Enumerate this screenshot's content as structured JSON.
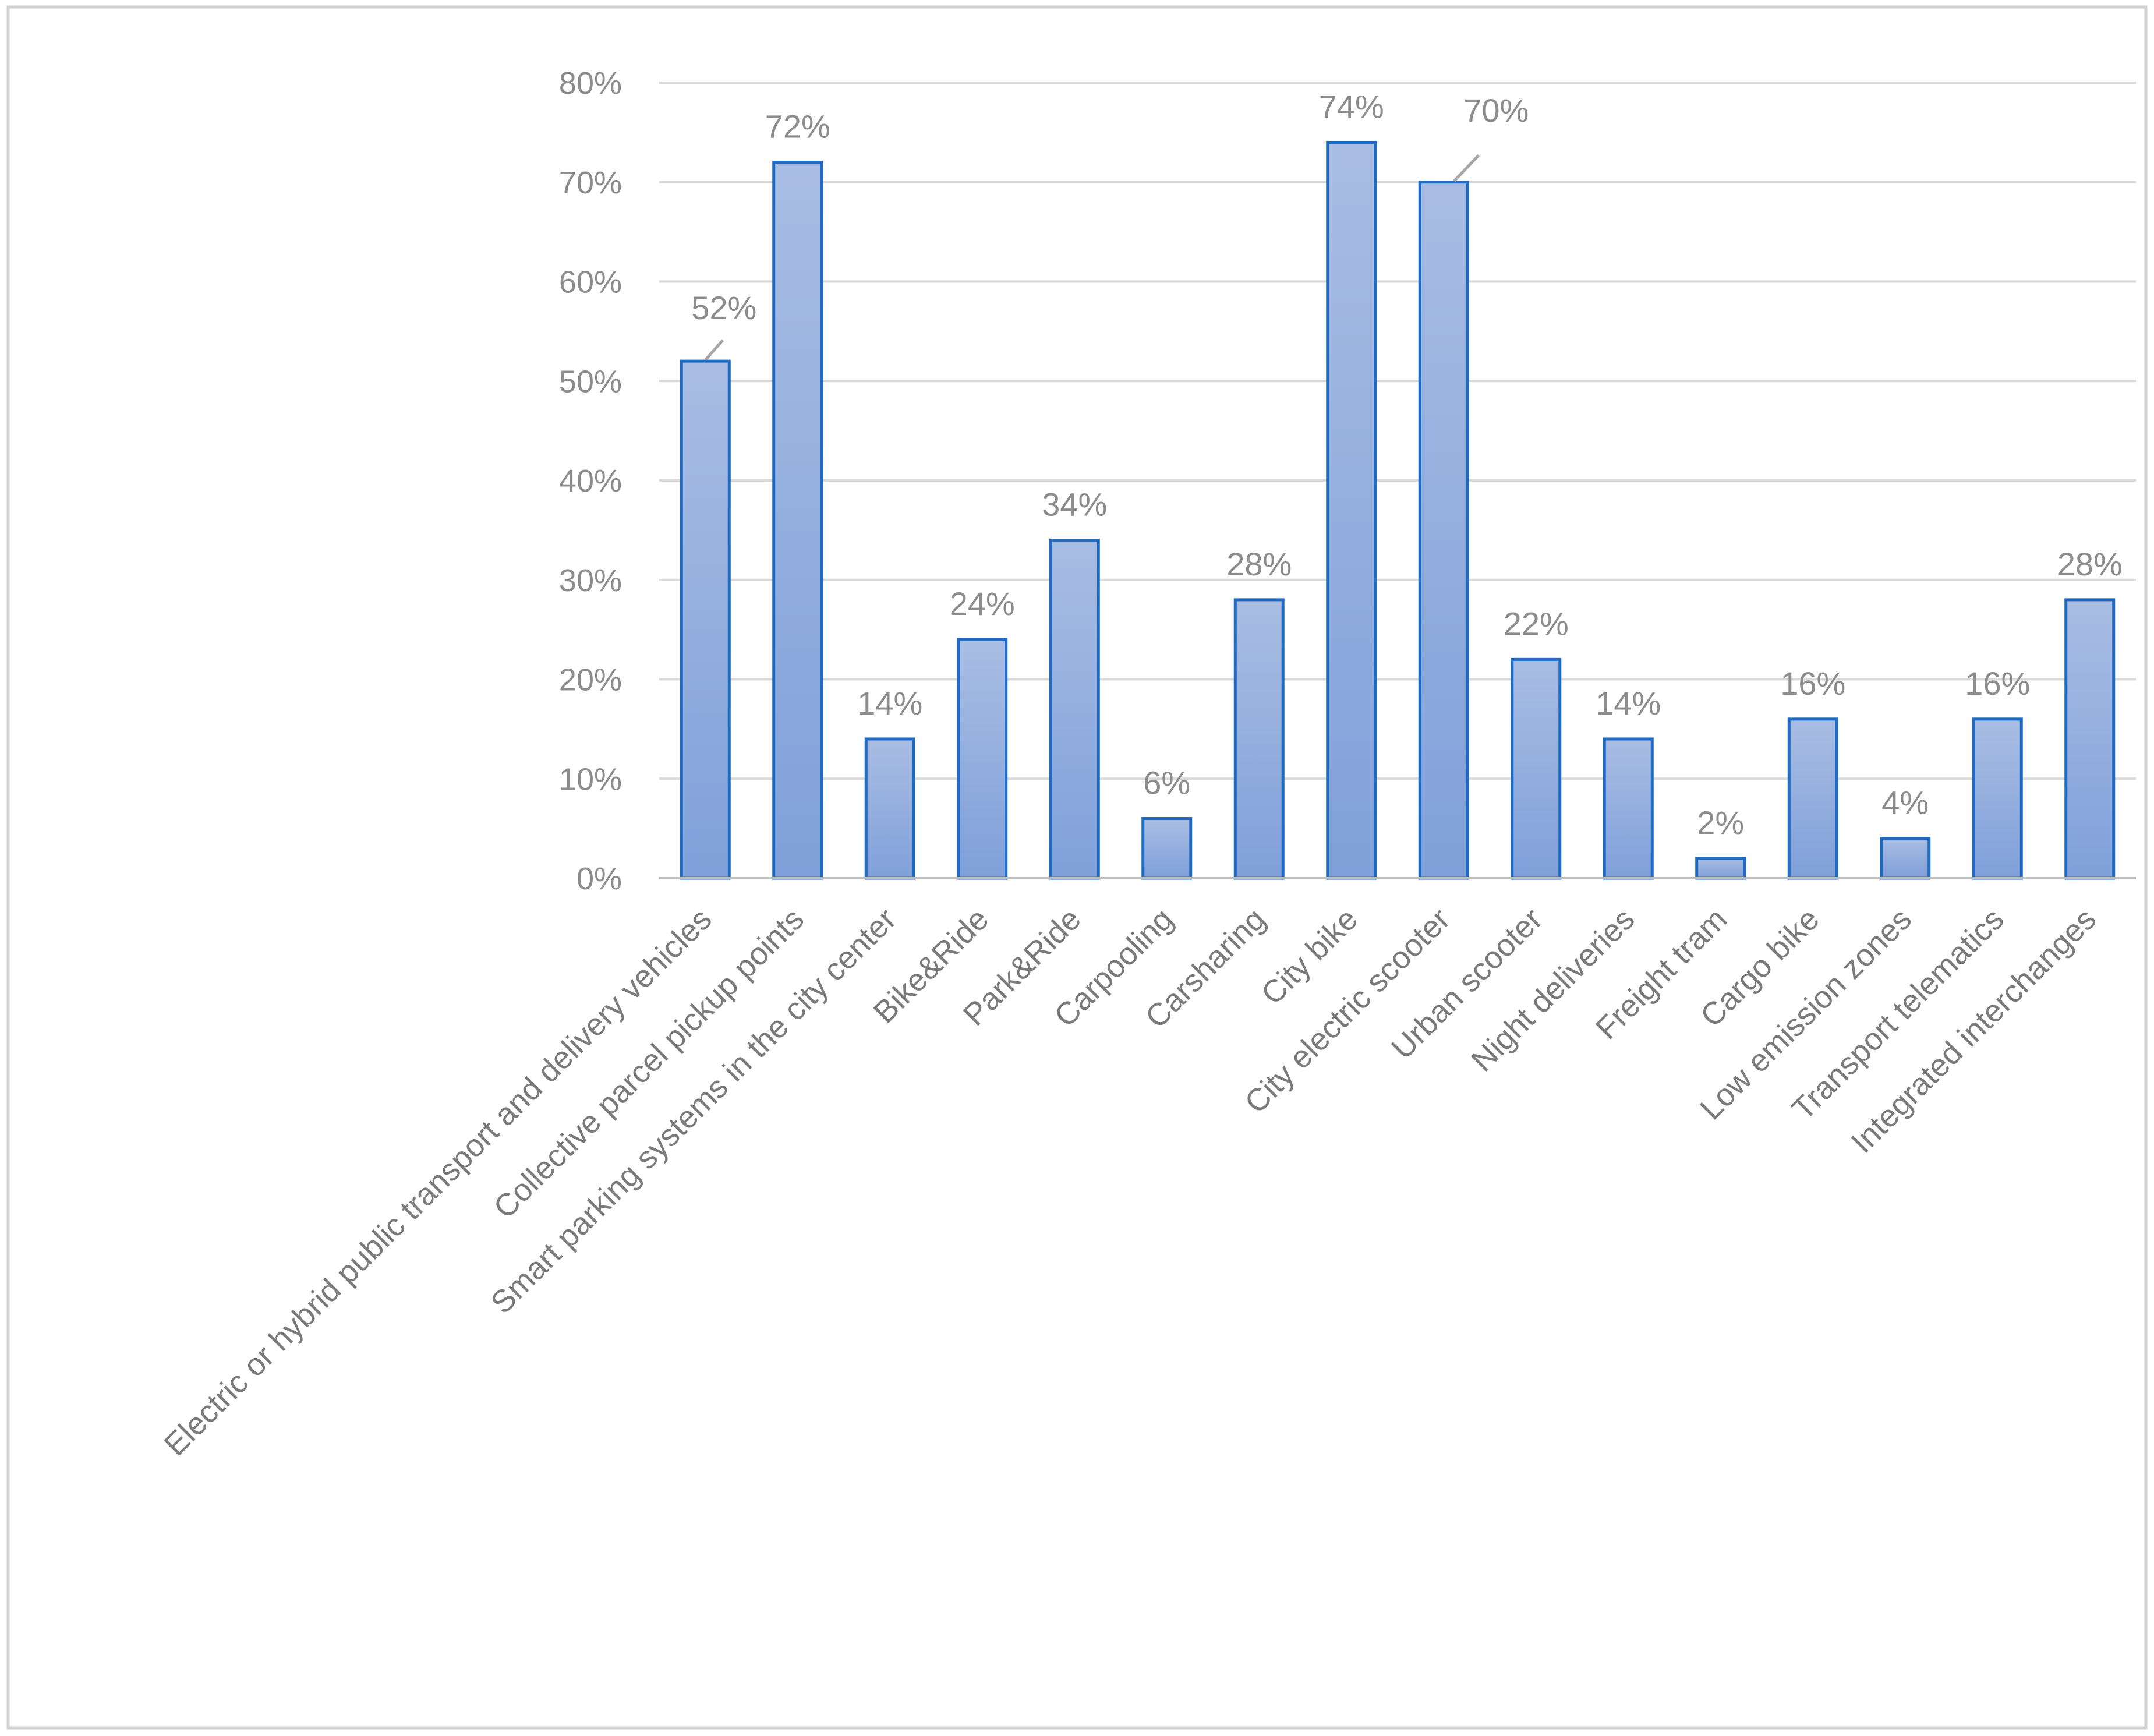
{
  "chart_data": {
    "type": "bar",
    "title": "",
    "xlabel": "",
    "ylabel": "",
    "ylim": [
      0,
      80
    ],
    "yticks": [
      0,
      10,
      20,
      30,
      40,
      50,
      60,
      70,
      80
    ],
    "ytick_labels": [
      "0%",
      "10%",
      "20%",
      "30%",
      "40%",
      "50%",
      "60%",
      "70%",
      "80%"
    ],
    "grid": true,
    "legend": "none",
    "categories": [
      "Electric or hybrid public transport and delivery vehicles",
      "Collective parcel pickup points",
      "Smart parking systems in the city center",
      "Bike&Ride",
      "Park&Ride",
      "Carpooling",
      "Carsharing",
      "City bike",
      "City electric scooter",
      "Urban scooter",
      "Night deliveries",
      "Freight tram",
      "Cargo bike",
      "Low emission zones",
      "Transport telematics",
      "Integrated interchanges"
    ],
    "values": [
      52,
      72,
      14,
      24,
      34,
      6,
      28,
      74,
      70,
      22,
      14,
      2,
      16,
      4,
      16,
      28
    ],
    "data_labels": [
      "52%",
      "72%",
      "14%",
      "24%",
      "34%",
      "6%",
      "28%",
      "74%",
      "70%",
      "22%",
      "14%",
      "2%",
      "16%",
      "4%",
      "16%",
      "28%"
    ],
    "colors": {
      "bar_top": "#a9bde3",
      "bar_bottom": "#7fa0da",
      "bar_border": "#1f6bc4",
      "grid": "#d9d9d9",
      "axis": "#bfbfbf",
      "tick_text": "#8c8c8c",
      "category_text": "#7a7a7a",
      "frame": "#d0d0d0"
    }
  }
}
